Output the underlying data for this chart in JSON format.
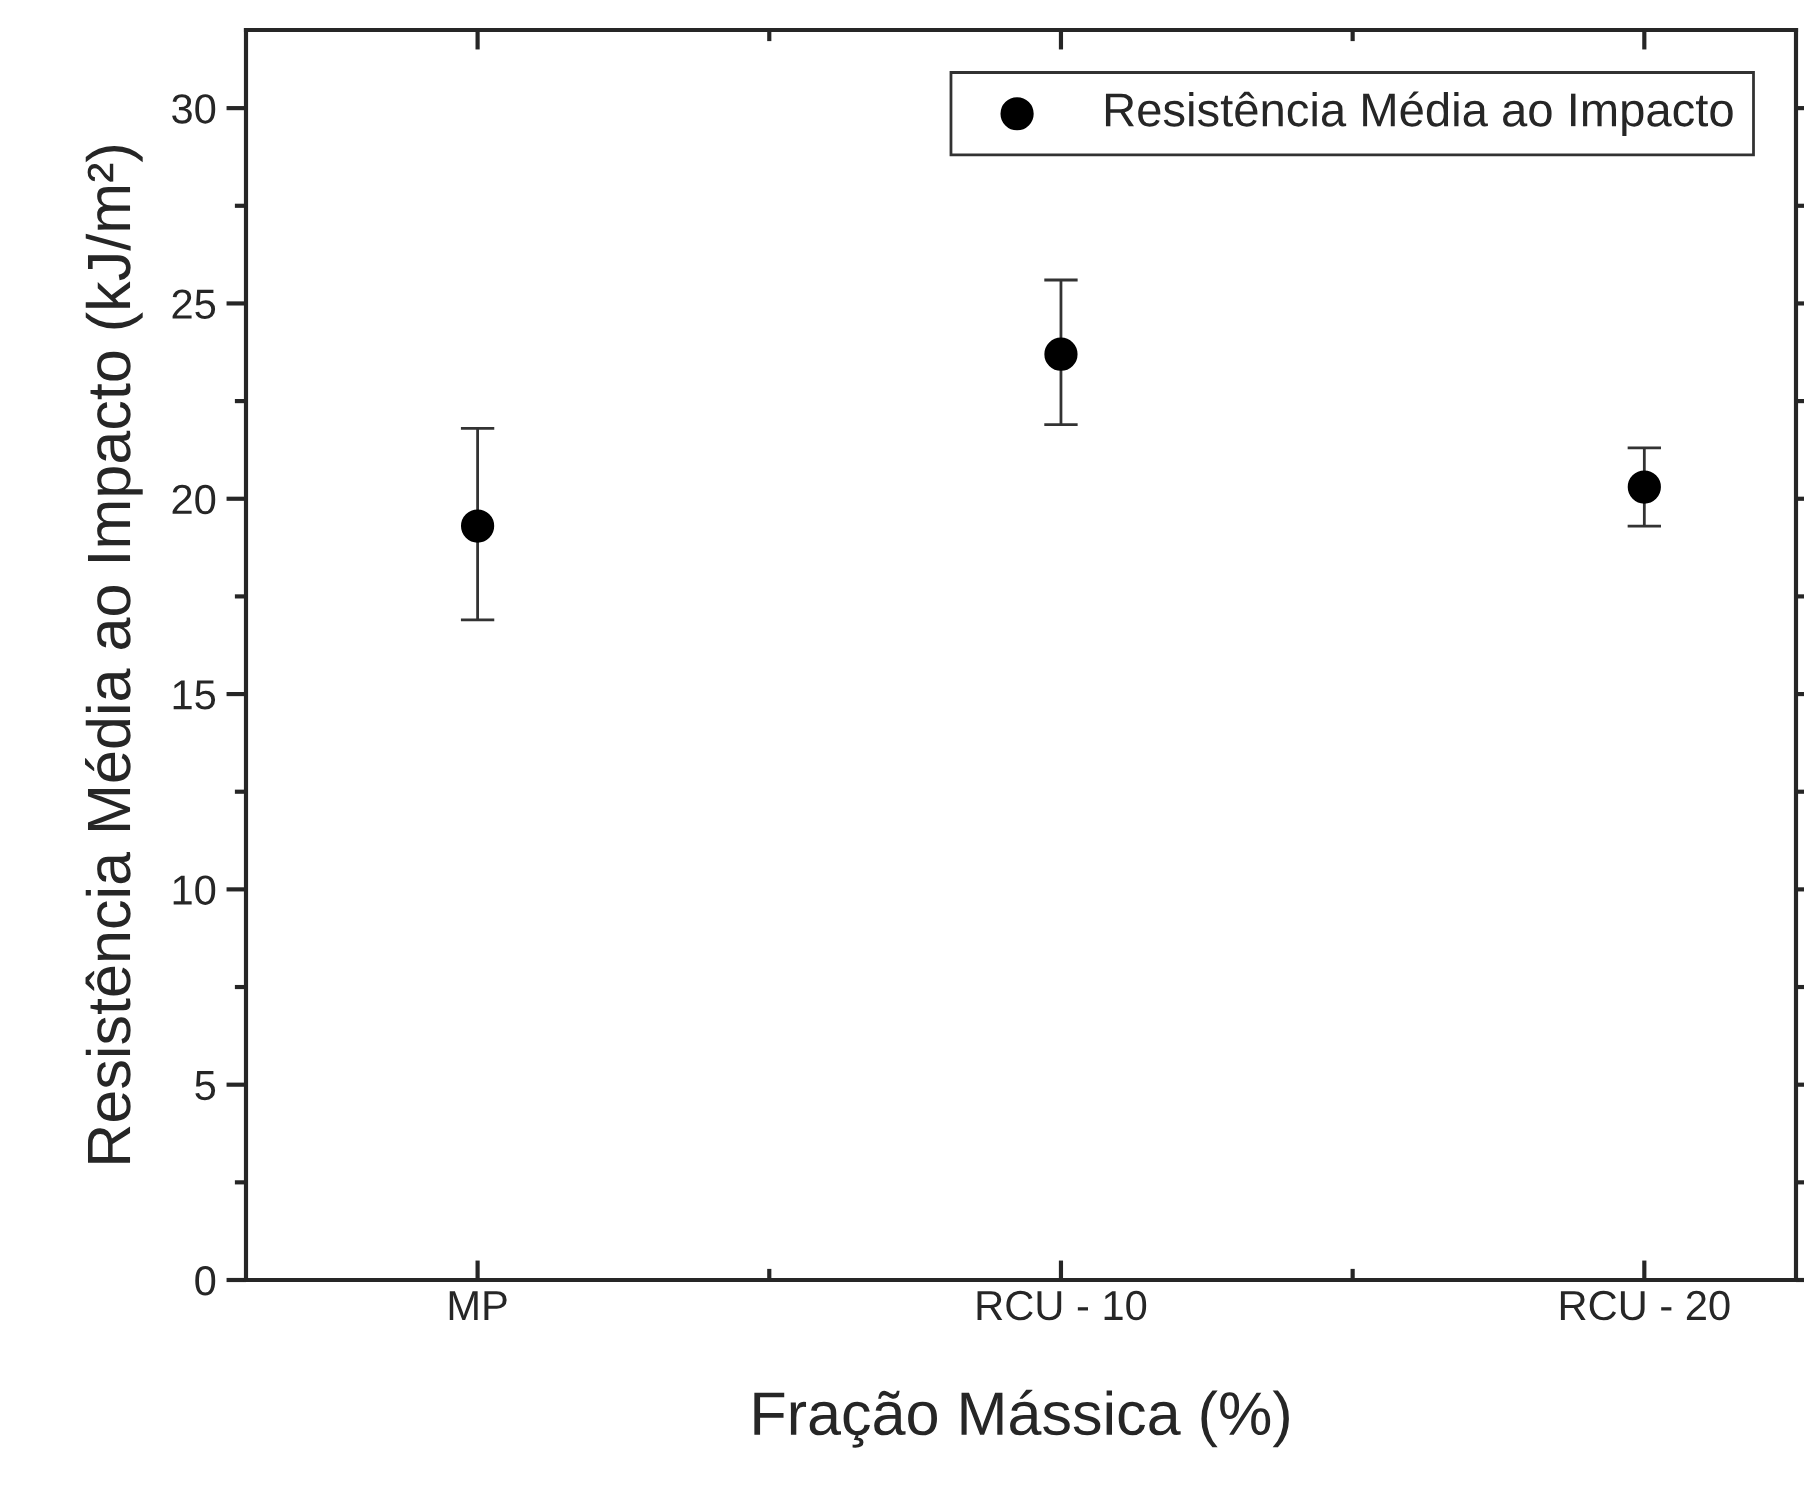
{
  "chart_data": {
    "type": "scatter",
    "xlabel": "Fração Mássica (%)",
    "ylabel": "Resistência Média ao Impacto (kJ/m²)",
    "categories": [
      "MP",
      "RCU - 10",
      "RCU - 20"
    ],
    "series": [
      {
        "name": "Resistência Média ao Impacto",
        "color": "#000000",
        "values": [
          19.3,
          23.7,
          20.3
        ],
        "errors": [
          [
            16.9,
            21.8
          ],
          [
            21.9,
            25.6
          ],
          [
            19.3,
            21.3
          ]
        ]
      }
    ],
    "ylim": [
      0,
      32
    ],
    "yticks": [
      0,
      5,
      10,
      15,
      20,
      25,
      30
    ],
    "marker": "circle",
    "legend": "top right",
    "grid": false
  }
}
